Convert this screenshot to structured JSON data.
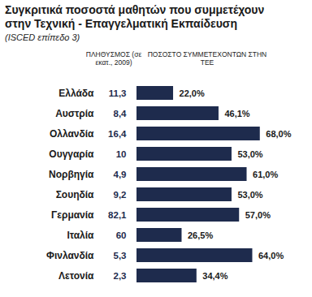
{
  "chart_data": {
    "type": "bar",
    "orientation": "horizontal",
    "title": "Συγκριτικά ποσοστά μαθητών που συμμετέχουν στην Τεχνική - Επαγγελματική Εκπαίδευση",
    "subtitle": "(ISCED επίπεδο 3)",
    "xlabel": "ΠΟΣΟΣΤΟ ΣΥΜΜΕΤΕΧΟΝΤΩΝ ΣΤΗΝ ΤΕΕ",
    "categories": [
      "Ελλάδα",
      "Αυστρία",
      "Ολλανδία",
      "Ουγγαρία",
      "Νορβηγία",
      "Σουηδία",
      "Γερμανία",
      "Ιταλία",
      "Φινλανδία",
      "Λετονία"
    ],
    "values": [
      22.0,
      46.1,
      68.0,
      53.0,
      61.0,
      53.0,
      57.0,
      26.5,
      64.0,
      34.4
    ],
    "value_labels": [
      "22,0%",
      "46,1%",
      "68,0%",
      "53,0%",
      "61,0%",
      "53,0%",
      "57,0%",
      "26,5%",
      "64,0%",
      "34,4%"
    ],
    "population_label": "ΠΛΗΘΥΣΜΟΣ (σε εκατ., 2009)",
    "population": [
      11.3,
      8.4,
      16.4,
      10,
      4.9,
      9.2,
      82.1,
      60,
      5.3,
      2.3
    ],
    "population_labels": [
      "11,3",
      "8,4",
      "16,4",
      "10",
      "4,9",
      "9,2",
      "82,1",
      "60",
      "5,3",
      "2,3"
    ],
    "color": "#1e2b4d",
    "xlim": [
      0,
      75
    ],
    "xticks": [],
    "data_labels": true,
    "tick_labels": "y",
    "grid": false
  }
}
